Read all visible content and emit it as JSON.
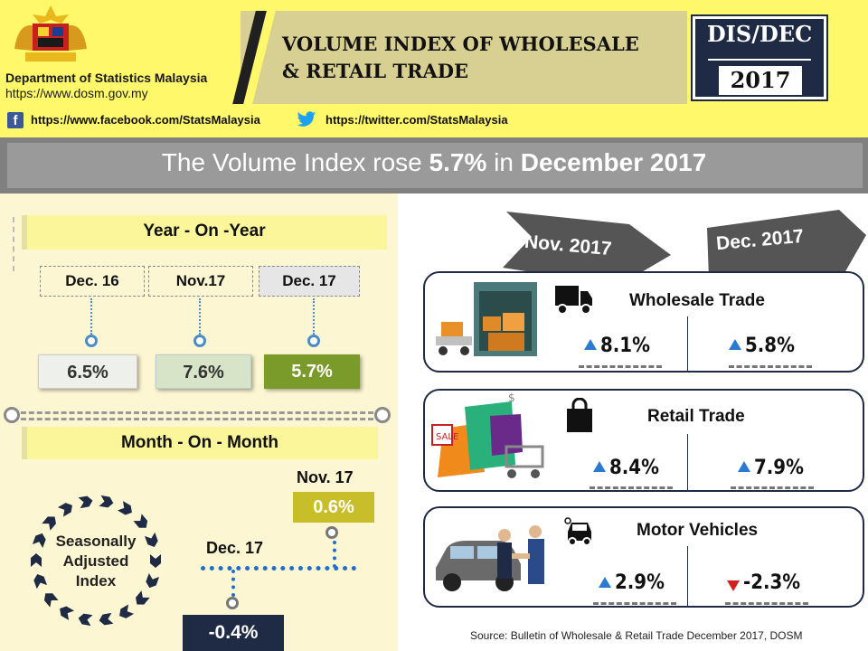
{
  "header": {
    "department": "Department of Statistics Malaysia",
    "website": "https://www.dosm.gov.my",
    "title_line1": "VOLUME INDEX OF WHOLESALE",
    "title_line2": "& RETAIL TRADE",
    "date_top": "DIS/DEC",
    "date_year": "2017",
    "facebook": "https://www.facebook.com/StatsMalaysia",
    "twitter": "https://twitter.com/StatsMalaysia"
  },
  "banner": {
    "prefix": "The Volume Index rose ",
    "rate": "5.7%",
    "middle": " in ",
    "period": "December 2017"
  },
  "yoy": {
    "title": "Year - On -Year",
    "items": [
      {
        "period": "Dec. 16",
        "value": "6.5%",
        "color": "#9aa0a0"
      },
      {
        "period": "Nov.17",
        "value": "7.6%",
        "color": "#b6c8a2"
      },
      {
        "period": "Dec. 17",
        "value": "5.7%",
        "color": "#7a9a2a"
      }
    ]
  },
  "mom": {
    "title": "Month - On - Month",
    "circle_label": [
      "Seasonally",
      "Adjusted",
      "Index"
    ],
    "nov_label": "Nov. 17",
    "nov_value": "0.6%",
    "dec_label": "Dec. 17",
    "dec_value": "-0.4%"
  },
  "periods": {
    "left": "Nov. 2017",
    "right": "Dec. 2017"
  },
  "sectors": [
    {
      "name": "Wholesale Trade",
      "nov": "8.1%",
      "dec": "5.8%",
      "nov_dir": "up",
      "dec_dir": "up"
    },
    {
      "name": "Retail Trade",
      "nov": "8.4%",
      "dec": "7.9%",
      "nov_dir": "up",
      "dec_dir": "up"
    },
    {
      "name": "Motor Vehicles",
      "nov": "2.9%",
      "dec": "-2.3%",
      "nov_dir": "up",
      "dec_dir": "down"
    }
  ],
  "source": "Source: Bulletin of Wholesale & Retail Trade December 2017, DOSM",
  "colors": {
    "header_yellow": "#fff86b",
    "navy": "#1f2b44",
    "up_arrow": "#2a7ad0",
    "down_arrow": "#d02020"
  }
}
